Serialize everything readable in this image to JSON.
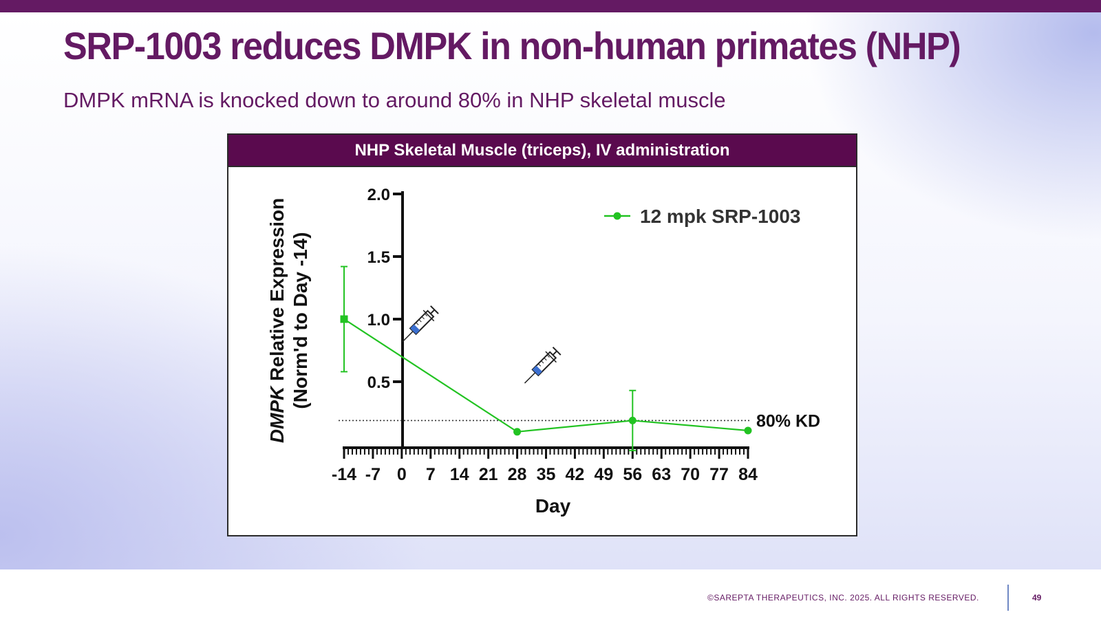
{
  "slide": {
    "title": "SRP-1003 reduces DMPK in non-human primates (NHP)",
    "subtitle": "DMPK mRNA is knocked down to around 80% in NHP skeletal muscle",
    "footer": "©SAREPTA THERAPEUTICS, INC. 2025.  ALL RIGHTS RESERVED.",
    "page_number": "49",
    "colors": {
      "brand": "#641a63",
      "panel_header": "#5a0a4e",
      "series": "#22c322"
    }
  },
  "chart_data": {
    "type": "line",
    "title": "NHP Skeletal Muscle (triceps), IV administration",
    "ylabel_italic": "DMPK",
    "ylabel_rest": " Relative Expression",
    "ylabel_line2": "(Norm'd to Day -14)",
    "xlabel": "Day",
    "xlim": [
      -14,
      84
    ],
    "ylim": [
      0,
      2.0
    ],
    "x_ticks": [
      "-14",
      "-7",
      "0",
      "7",
      "14",
      "21",
      "28",
      "35",
      "42",
      "49",
      "56",
      "63",
      "70",
      "77",
      "84"
    ],
    "y_ticks": [
      "0.5",
      "1.0",
      "1.5",
      "2.0"
    ],
    "series": [
      {
        "name": "12 mpk SRP-1003",
        "color": "#22c322",
        "points": [
          {
            "x": -14,
            "y": 1.0,
            "err": 0.42
          },
          {
            "x": 28,
            "y": 0.1,
            "err": 0
          },
          {
            "x": 56,
            "y": 0.19,
            "err": 0.24
          },
          {
            "x": 84,
            "y": 0.11,
            "err": 0
          }
        ]
      }
    ],
    "reference_line": {
      "y": 0.19,
      "label": "80% KD",
      "style": "dotted"
    },
    "dosing_days": [
      0,
      28
    ],
    "dose_icon": "syringe-icon",
    "legend_position": "top-right",
    "grid": false
  }
}
